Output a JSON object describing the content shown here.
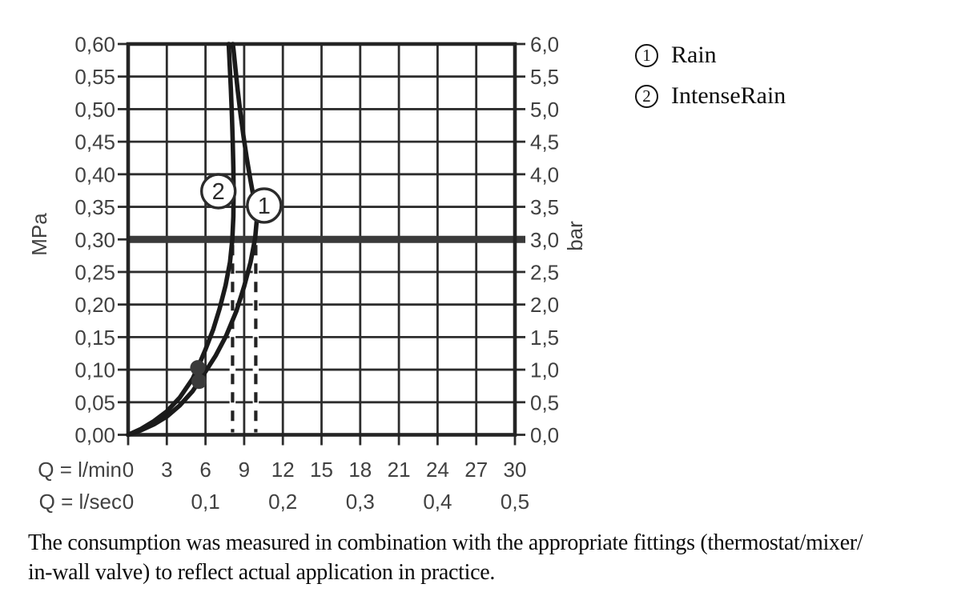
{
  "chart_data": {
    "type": "line",
    "title": "",
    "units": {
      "y_left": "MPa",
      "y_right": "bar"
    },
    "x_range_lmin": [
      0,
      30
    ],
    "y_range_mpa": [
      0,
      0.6
    ],
    "reference_line_mpa": 0.3,
    "y_rows": [
      {
        "mpa": 0.6,
        "left": "0,60",
        "right": "6,0"
      },
      {
        "mpa": 0.55,
        "left": "0,55",
        "right": "5,5"
      },
      {
        "mpa": 0.5,
        "left": "0,50",
        "right": "5,0"
      },
      {
        "mpa": 0.45,
        "left": "0,45",
        "right": "4,5"
      },
      {
        "mpa": 0.4,
        "left": "0,40",
        "right": "4,0"
      },
      {
        "mpa": 0.35,
        "left": "0,35",
        "right": "3,5"
      },
      {
        "mpa": 0.3,
        "left": "0,30",
        "right": "3,0"
      },
      {
        "mpa": 0.25,
        "left": "0,25",
        "right": "2,5"
      },
      {
        "mpa": 0.2,
        "left": "0,20",
        "right": "2,0"
      },
      {
        "mpa": 0.15,
        "left": "0,15",
        "right": "1,5"
      },
      {
        "mpa": 0.1,
        "left": "0,10",
        "right": "1,0"
      },
      {
        "mpa": 0.05,
        "left": "0,05",
        "right": "0,5"
      },
      {
        "mpa": 0.0,
        "left": "0,00",
        "right": "0,0"
      }
    ],
    "x_rows": [
      {
        "prefix": "Q = l/min",
        "ticks": [
          {
            "q": 0,
            "label": "0"
          },
          {
            "q": 3,
            "label": "3"
          },
          {
            "q": 6,
            "label": "6"
          },
          {
            "q": 9,
            "label": "9"
          },
          {
            "q": 12,
            "label": "12"
          },
          {
            "q": 15,
            "label": "15"
          },
          {
            "q": 18,
            "label": "18"
          },
          {
            "q": 21,
            "label": "21"
          },
          {
            "q": 24,
            "label": "24"
          },
          {
            "q": 27,
            "label": "27"
          },
          {
            "q": 30,
            "label": "30"
          }
        ]
      },
      {
        "prefix": "Q = l/sec",
        "ticks": [
          {
            "q": 0,
            "label": "0"
          },
          {
            "q": 6,
            "label": "0,1"
          },
          {
            "q": 12,
            "label": "0,2"
          },
          {
            "q": 18,
            "label": "0,3"
          },
          {
            "q": 24,
            "label": "0,4"
          },
          {
            "q": 30,
            "label": "0,5"
          }
        ]
      }
    ],
    "series": [
      {
        "badge": "1",
        "name": "Rain",
        "flow_at_3bar_lmin": 9.9,
        "marker": {
          "lmin": 5.5,
          "mpa": 0.082
        },
        "badge_pos": {
          "lmin": 10.55,
          "mpa": 0.352
        },
        "points": [
          [
            0,
            0
          ],
          [
            1,
            0.007
          ],
          [
            2,
            0.016
          ],
          [
            3,
            0.028
          ],
          [
            4,
            0.045
          ],
          [
            5,
            0.067
          ],
          [
            5.5,
            0.082
          ],
          [
            6,
            0.097
          ],
          [
            6.8,
            0.122
          ],
          [
            7.6,
            0.152
          ],
          [
            8.4,
            0.19
          ],
          [
            9.0,
            0.228
          ],
          [
            9.5,
            0.265
          ],
          [
            9.85,
            0.302
          ],
          [
            9.97,
            0.328
          ],
          [
            9.82,
            0.355
          ],
          [
            9.5,
            0.39
          ],
          [
            9.2,
            0.425
          ],
          [
            8.95,
            0.458
          ],
          [
            8.72,
            0.492
          ],
          [
            8.5,
            0.528
          ],
          [
            8.32,
            0.562
          ],
          [
            8.18,
            0.59
          ],
          [
            8.12,
            0.6
          ]
        ]
      },
      {
        "badge": "2",
        "name": "IntenseRain",
        "flow_at_3bar_lmin": 8.1,
        "marker": {
          "lmin": 5.4,
          "mpa": 0.103
        },
        "badge_pos": {
          "lmin": 7.0,
          "mpa": 0.374
        },
        "points": [
          [
            0,
            0
          ],
          [
            1,
            0.009
          ],
          [
            2,
            0.021
          ],
          [
            3,
            0.036
          ],
          [
            4,
            0.057
          ],
          [
            5,
            0.086
          ],
          [
            5.4,
            0.103
          ],
          [
            6,
            0.131
          ],
          [
            6.6,
            0.162
          ],
          [
            7.1,
            0.194
          ],
          [
            7.55,
            0.229
          ],
          [
            7.9,
            0.265
          ],
          [
            8.08,
            0.3
          ],
          [
            8.16,
            0.335
          ],
          [
            8.18,
            0.372
          ],
          [
            8.16,
            0.41
          ],
          [
            8.11,
            0.45
          ],
          [
            8.05,
            0.49
          ],
          [
            7.97,
            0.53
          ],
          [
            7.88,
            0.566
          ],
          [
            7.8,
            0.6
          ]
        ]
      }
    ],
    "colors": {
      "curve": "#1b1b1b",
      "grid": "#2d2d2d",
      "reference_line": "#3a3a3a",
      "marker": "#3a3a3a",
      "axis_text": "#414141"
    },
    "legend_position": "top-right"
  },
  "legend": {
    "items": [
      {
        "symbol": "1",
        "label": "Rain"
      },
      {
        "symbol": "2",
        "label": "IntenseRain"
      }
    ]
  },
  "caption": {
    "lines": [
      "The consumption was measured in combination with the appropriate fittings (thermostat/mixer/",
      "in-wall valve) to reflect actual application in practice."
    ]
  }
}
